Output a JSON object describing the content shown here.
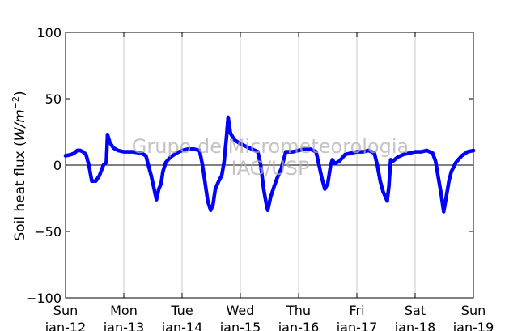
{
  "chart_data": {
    "type": "scatter",
    "ylabel": "Soil heat flux (W/m⁻²)",
    "ylabel_plain": "Soil heat flux (",
    "ylabel_math": "W/m",
    "ylabel_exp": "−2",
    "ylabel_close": ")",
    "ylim": [
      -100,
      100
    ],
    "xlim_days": [
      0,
      7
    ],
    "y_ticks": [
      100,
      50,
      0,
      -50,
      -100
    ],
    "y_tick_labels": [
      "100",
      "50",
      "0",
      "−50",
      "−100"
    ],
    "x_ticks": [
      {
        "day": "Sun",
        "date": "Jan-12"
      },
      {
        "day": "Mon",
        "date": "Jan-13"
      },
      {
        "day": "Tue",
        "date": "Jan-14"
      },
      {
        "day": "Wed",
        "date": "Jan-15"
      },
      {
        "day": "Thu",
        "date": "Jan-16"
      },
      {
        "day": "Fri",
        "date": "Jan-17"
      },
      {
        "day": "Sat",
        "date": "Jan-18"
      },
      {
        "day": "Sun",
        "date": "Jan-19"
      }
    ],
    "x_tick_labels_shown": [
      "Sun\nJan-12",
      "Mon\nJan-13",
      "Tue\nJan-14",
      "Wed\nJan-15",
      "Thu\nJan-16",
      "Fri\nJan-17",
      "Sat\nJan-18",
      "Sun\nJan-19"
    ],
    "grid": "vertical",
    "zero_line": true,
    "series": [
      {
        "color": "#0000ff",
        "keypoints": [
          [
            0.0,
            7
          ],
          [
            0.1,
            8
          ],
          [
            0.15,
            9
          ],
          [
            0.2,
            11
          ],
          [
            0.25,
            11
          ],
          [
            0.3,
            10
          ],
          [
            0.35,
            8
          ],
          [
            0.4,
            0
          ],
          [
            0.45,
            -12
          ],
          [
            0.52,
            -12
          ],
          [
            0.58,
            -8
          ],
          [
            0.65,
            0
          ],
          [
            0.7,
            2
          ],
          [
            0.72,
            23
          ],
          [
            0.76,
            17
          ],
          [
            0.82,
            13
          ],
          [
            0.9,
            11
          ],
          [
            1.0,
            10
          ],
          [
            1.15,
            10
          ],
          [
            1.3,
            9
          ],
          [
            1.38,
            7
          ],
          [
            1.42,
            0
          ],
          [
            1.47,
            -8
          ],
          [
            1.52,
            -18
          ],
          [
            1.56,
            -26
          ],
          [
            1.6,
            -18
          ],
          [
            1.64,
            -14
          ],
          [
            1.67,
            -5
          ],
          [
            1.72,
            2
          ],
          [
            1.8,
            6
          ],
          [
            1.9,
            9
          ],
          [
            2.0,
            11
          ],
          [
            2.1,
            12
          ],
          [
            2.2,
            12
          ],
          [
            2.3,
            11
          ],
          [
            2.35,
            0
          ],
          [
            2.4,
            -15
          ],
          [
            2.44,
            -27
          ],
          [
            2.49,
            -34
          ],
          [
            2.53,
            -30
          ],
          [
            2.57,
            -18
          ],
          [
            2.63,
            -12
          ],
          [
            2.68,
            -8
          ],
          [
            2.72,
            2
          ],
          [
            2.76,
            20
          ],
          [
            2.79,
            36
          ],
          [
            2.83,
            24
          ],
          [
            2.9,
            19
          ],
          [
            3.0,
            16
          ],
          [
            3.1,
            14
          ],
          [
            3.2,
            12
          ],
          [
            3.3,
            10
          ],
          [
            3.35,
            0
          ],
          [
            3.4,
            -18
          ],
          [
            3.44,
            -28
          ],
          [
            3.47,
            -34
          ],
          [
            3.52,
            -24
          ],
          [
            3.58,
            -16
          ],
          [
            3.63,
            -10
          ],
          [
            3.7,
            -3
          ],
          [
            3.78,
            10
          ],
          [
            3.9,
            10
          ],
          [
            4.0,
            11
          ],
          [
            4.1,
            12
          ],
          [
            4.2,
            12
          ],
          [
            4.3,
            10
          ],
          [
            4.35,
            0
          ],
          [
            4.4,
            -10
          ],
          [
            4.45,
            -18
          ],
          [
            4.5,
            -14
          ],
          [
            4.55,
            0
          ],
          [
            4.58,
            4
          ],
          [
            4.62,
            1
          ],
          [
            4.7,
            3
          ],
          [
            4.8,
            8
          ],
          [
            4.9,
            9
          ],
          [
            5.0,
            10
          ],
          [
            5.1,
            10
          ],
          [
            5.2,
            11
          ],
          [
            5.3,
            9
          ],
          [
            5.35,
            0
          ],
          [
            5.4,
            -12
          ],
          [
            5.45,
            -20
          ],
          [
            5.52,
            -27
          ],
          [
            5.55,
            -16
          ],
          [
            5.58,
            4
          ],
          [
            5.62,
            3
          ],
          [
            5.7,
            6
          ],
          [
            5.8,
            8
          ],
          [
            5.9,
            9
          ],
          [
            6.0,
            10
          ],
          [
            6.1,
            10
          ],
          [
            6.2,
            11
          ],
          [
            6.3,
            9
          ],
          [
            6.35,
            3
          ],
          [
            6.4,
            -10
          ],
          [
            6.44,
            -20
          ],
          [
            6.49,
            -35
          ],
          [
            6.53,
            -25
          ],
          [
            6.58,
            -12
          ],
          [
            6.62,
            -5
          ],
          [
            6.7,
            2
          ],
          [
            6.8,
            7
          ],
          [
            6.9,
            10
          ],
          [
            7.0,
            11
          ]
        ]
      }
    ],
    "watermark_lines": [
      "Grupo de Micrometeorologia",
      "IAG/USP"
    ]
  }
}
